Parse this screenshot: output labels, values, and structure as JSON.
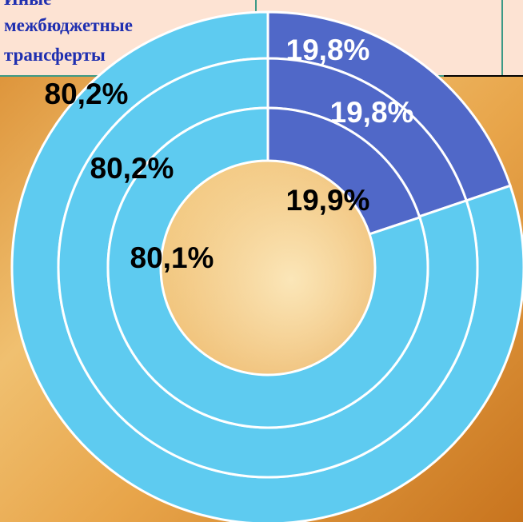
{
  "header": {
    "lines": [
      "Иные",
      "межбюджетные",
      "трансферты"
    ]
  },
  "chart_data": {
    "type": "donut",
    "colors": [
      "#5068c8",
      "#5ecbf0"
    ],
    "series": [
      {
        "values": [
          19.8,
          80.2
        ],
        "value_labels": [
          "19,8%",
          "80,2%"
        ]
      },
      {
        "values": [
          19.8,
          80.2
        ],
        "value_labels": [
          "19,8%",
          "80,2%"
        ]
      },
      {
        "values": [
          19.9,
          80.1
        ],
        "value_labels": [
          "19,9%",
          "80,1%"
        ]
      }
    ]
  }
}
